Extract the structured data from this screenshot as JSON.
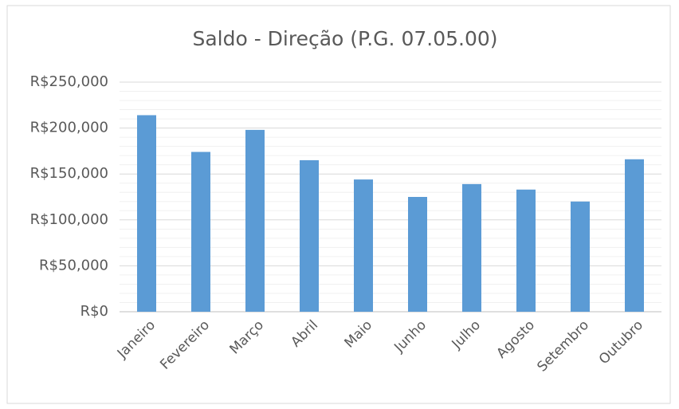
{
  "chart_data": {
    "type": "bar",
    "title": "Saldo - Direção (P.G. 07.05.00)",
    "categories": [
      "Janeiro",
      "Fevereiro",
      "Março",
      "Abril",
      "Maio",
      "Junho",
      "Julho",
      "Agosto",
      "Setembro",
      "Outubro"
    ],
    "values": [
      214000,
      174000,
      198000,
      165000,
      144000,
      125000,
      139000,
      133000,
      120000,
      166000
    ],
    "color": "#5b9bd5",
    "ylim": [
      0,
      250000
    ],
    "yticks": [
      {
        "value": 0,
        "label": "R$0"
      },
      {
        "value": 50000,
        "label": "R$50,000"
      },
      {
        "value": 100000,
        "label": "R$100,000"
      },
      {
        "value": 150000,
        "label": "R$150,000"
      },
      {
        "value": 200000,
        "label": "R$200,000"
      },
      {
        "value": 250000,
        "label": "R$250,000"
      }
    ],
    "grid": true,
    "minor_grid": true
  }
}
